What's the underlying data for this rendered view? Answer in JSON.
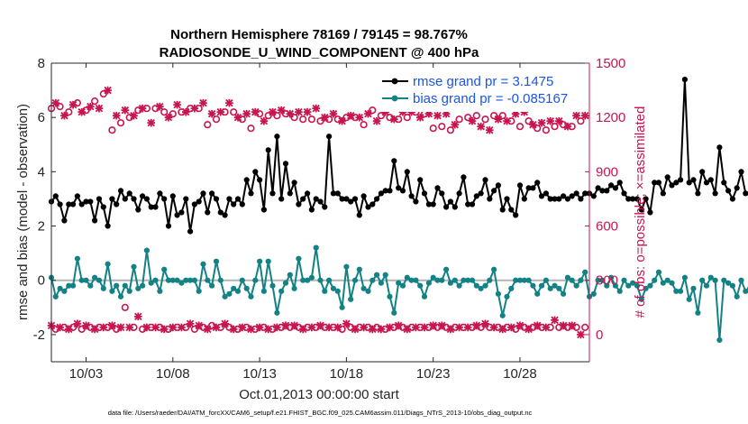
{
  "chart_data": {
    "type": "line",
    "title_line1": "Northern Hemisphere 78169 / 79145 = 98.767%",
    "title_line2": "RADIOSONDE_U_WIND_COMPONENT @ 400 hPa",
    "ylabel": "rmse and bias (model - observation)",
    "y2label": "# of obs: o=possible; ×=assimilated",
    "xlabel": "Oct.01,2013 00:00:00 start",
    "footnote": "data file: /Users/raeder/DAI/ATM_forcXX/CAM6_setup/f.e21.FHIST_BGC.f09_025.CAM6assim.011/Diags_NTrS_2013-10/obs_diag_output.nc",
    "xlim": [
      1,
      32
    ],
    "ylim": [
      -3,
      8
    ],
    "y2lim": [
      -150,
      1500
    ],
    "x_ticks": [
      3,
      8,
      13,
      18,
      23,
      28
    ],
    "x_tick_labels": [
      "10/03",
      "10/08",
      "10/13",
      "10/18",
      "10/23",
      "10/28"
    ],
    "y_ticks": [
      -2,
      0,
      2,
      4,
      6,
      8
    ],
    "y_tick_labels": [
      "-2",
      "0",
      "2",
      "4",
      "6",
      "8"
    ],
    "y2_ticks": [
      0,
      300,
      600,
      900,
      1200,
      1500
    ],
    "y2_tick_labels": [
      "0",
      "300",
      "600",
      "900",
      "1200",
      "1500"
    ],
    "series": [
      {
        "name": "rmse grand pr = 3.1475",
        "color": "#000000",
        "x_start": 1.0,
        "x_step": 0.25,
        "values": [
          2.9,
          3.1,
          2.8,
          2.2,
          2.8,
          2.8,
          3.1,
          2.8,
          2.9,
          2.9,
          2.2,
          3.0,
          2.7,
          2.0,
          3.0,
          2.8,
          3.3,
          3.0,
          3.2,
          3.0,
          2.6,
          3.1,
          3.0,
          2.7,
          2.7,
          3.2,
          3.0,
          2.0,
          3.1,
          2.4,
          2.5,
          3.0,
          1.8,
          2.8,
          2.9,
          3.2,
          2.5,
          3.2,
          3.0,
          2.5,
          2.4,
          3.0,
          2.8,
          3.0,
          2.8,
          3.7,
          3.2,
          4.0,
          3.7,
          2.6,
          4.8,
          3.2,
          5.3,
          3.0,
          4.3,
          3.2,
          3.6,
          2.8,
          3.0,
          3.2,
          2.6,
          3.0,
          2.9,
          2.7,
          5.3,
          3.2,
          3.2,
          3.0,
          3.0,
          2.9,
          3.0,
          2.4,
          3.1,
          2.7,
          2.8,
          3.0,
          3.2,
          3.3,
          3.3,
          4.4,
          3.4,
          3.3,
          4.0,
          3.1,
          2.9,
          3.7,
          3.2,
          2.8,
          2.8,
          3.4,
          3.2,
          2.7,
          2.9,
          2.7,
          3.2,
          3.8,
          2.8,
          2.8,
          3.1,
          3.2,
          3.7,
          3.0,
          3.3,
          3.5,
          2.6,
          3.0,
          2.6,
          2.4,
          3.5,
          3.0,
          3.4,
          3.4,
          3.6,
          3.1,
          3.2,
          3.0,
          3.0,
          3.0,
          3.1,
          3.0,
          3.1,
          3.2,
          3.0,
          3.2,
          3.2,
          3.1,
          3.4,
          3.3,
          3.3,
          3.5,
          3.4,
          3.6,
          3.2,
          3.0,
          3.0,
          3.0,
          2.6,
          3.0,
          2.5,
          3.6,
          3.6,
          3.2,
          3.8,
          3.5,
          3.6,
          3.7,
          7.4,
          3.6,
          3.7,
          3.2,
          4.0,
          3.6,
          3.7,
          3.2,
          4.9,
          3.6,
          3.3,
          3.0,
          3.4,
          4.0,
          3.2,
          3.2,
          3.3,
          3.6,
          2.9,
          3.0
        ]
      },
      {
        "name": "bias grand pr = -0.085167",
        "color": "#138284",
        "x_start": 1.0,
        "x_step": 0.25,
        "values": [
          0.1,
          -0.6,
          -0.3,
          -0.4,
          -0.2,
          -0.2,
          0.8,
          0.0,
          0.0,
          -0.2,
          0.1,
          0.0,
          -0.3,
          0.6,
          -0.4,
          -0.2,
          -0.6,
          -0.2,
          -0.4,
          0.5,
          -0.3,
          -0.2,
          1.1,
          -0.1,
          0.0,
          -0.4,
          0.4,
          0.0,
          0.0,
          0.0,
          -0.1,
          0.0,
          0.0,
          0.0,
          -0.4,
          0.6,
          0.0,
          -0.2,
          0.7,
          0.0,
          -0.6,
          -0.5,
          -0.3,
          -0.4,
          0.0,
          -0.3,
          -0.6,
          0.0,
          0.7,
          -0.4,
          0.7,
          -0.2,
          -1.2,
          -0.4,
          -0.1,
          0.2,
          -0.3,
          0.8,
          0.0,
          0.0,
          0.1,
          1.2,
          0.0,
          -0.4,
          0.0,
          -0.3,
          -0.4,
          -1.0,
          0.5,
          -0.7,
          0.0,
          0.4,
          -0.3,
          -0.4,
          0.0,
          0.2,
          -0.1,
          0.2,
          -0.6,
          -1.2,
          -0.1,
          -0.2,
          0.1,
          0.0,
          0.0,
          -0.2,
          -0.6,
          -0.1,
          0.1,
          0.0,
          0.0,
          0.4,
          -0.1,
          0.0,
          -0.2,
          0.0,
          0.0,
          0.0,
          -0.2,
          -0.3,
          -0.2,
          0.0,
          0.4,
          -0.5,
          -1.3,
          -0.6,
          -0.3,
          0.0,
          0.0,
          0.0,
          0.0,
          -0.2,
          -0.5,
          -0.2,
          0.0,
          -0.3,
          -0.2,
          -0.3,
          -0.5,
          0.1,
          0.0,
          -0.2,
          0.0,
          0.3,
          -0.6,
          -0.5,
          0.0,
          0.0,
          -0.2,
          0.1,
          -0.2,
          -0.4,
          0.0,
          -0.2,
          -0.1,
          -0.2,
          -0.7,
          -0.3,
          -0.2,
          0.0,
          0.3,
          -0.1,
          0.0,
          -0.1,
          -0.4,
          -0.4,
          0.1,
          -0.7,
          -0.3,
          -1.2,
          0.0,
          -0.2,
          0.1,
          0.0,
          -2.2,
          0.0,
          -0.1,
          -0.2,
          -0.6,
          0.0,
          -0.4,
          -0.3,
          -0.3,
          0.0,
          0.1,
          -1.3
        ]
      },
      {
        "name": "o=possible",
        "color": "#c8154f",
        "marker": "circle",
        "axis": "right",
        "x_start": 1.0,
        "x_step": 0.5,
        "values": [
          1250,
          1260,
          1230,
          1280,
          1240,
          1290,
          1330,
          1130,
          1170,
          1200,
          1240,
          1250,
          1250,
          1230,
          1220,
          1230,
          1250,
          1250,
          1160,
          1190,
          1230,
          1230,
          1190,
          1140,
          1220,
          1210,
          1210,
          1220,
          1200,
          1190,
          1190,
          1180,
          1190,
          1190,
          1200,
          1200,
          1160,
          1240,
          1210,
          1200,
          1190,
          1200,
          1230,
          1220,
          1140,
          1150,
          1130,
          1190,
          1200,
          1210,
          1190,
          1210,
          1210,
          1180,
          1150,
          1180,
          1140,
          1130,
          1150,
          1160,
          1150,
          1180
        ]
      },
      {
        "name": "×=assimilated",
        "color": "#c8154f",
        "marker": "x",
        "axis": "right",
        "x_start": 1.25,
        "x_step": 0.5,
        "values": [
          1280,
          1210,
          1270,
          1230,
          1260,
          1250,
          1350,
          1210,
          1240,
          1210,
          1250,
          1170,
          1260,
          1200,
          1270,
          1230,
          1250,
          1280,
          1220,
          1230,
          1280,
          1200,
          1220,
          1230,
          1180,
          1230,
          1240,
          1220,
          1230,
          1230,
          1250,
          1200,
          1220,
          1180,
          1210,
          1200,
          1220,
          1180,
          1230,
          1190,
          1230,
          1230,
          1200,
          1220,
          1210,
          1220,
          1160,
          1260,
          1180,
          1150,
          1130,
          1190,
          1180,
          1220,
          1230,
          1160,
          1170,
          1180,
          1180,
          1150,
          1210,
          1210
        ]
      },
      {
        "name": "assimilated-low-x",
        "color": "#c8154f",
        "marker": "x",
        "axis": "right",
        "x_start": 1.0,
        "x_step": 0.5,
        "values": [
          50,
          40,
          30,
          60,
          50,
          30,
          40,
          50,
          40,
          40,
          100,
          40,
          40,
          30,
          40,
          40,
          60,
          50,
          30,
          40,
          60,
          30,
          40,
          30,
          40,
          30,
          40,
          50,
          50,
          30,
          40,
          50,
          40,
          40,
          60,
          30,
          40,
          30,
          30,
          40,
          50,
          30,
          40,
          40,
          50,
          50,
          30,
          40,
          40,
          50,
          60,
          40,
          30,
          40,
          50,
          30,
          50,
          40,
          80,
          50,
          50,
          0
        ]
      },
      {
        "name": "possible-low-o",
        "color": "#c8154f",
        "marker": "circle",
        "axis": "right",
        "x_start": 1.25,
        "x_step": 0.5,
        "values": [
          30,
          40,
          40,
          30,
          40,
          40,
          40,
          30,
          150,
          40,
          30,
          40,
          40,
          30,
          40,
          40,
          30,
          40,
          50,
          40,
          40,
          30,
          40,
          30,
          40,
          30,
          40,
          40,
          40,
          40,
          40,
          40,
          40,
          30,
          40,
          40,
          40,
          40,
          30,
          40,
          40,
          40,
          40,
          40,
          40,
          40,
          40,
          40,
          40,
          40,
          40,
          40,
          40,
          30,
          40,
          40,
          40,
          40,
          40,
          40,
          40,
          40
        ]
      }
    ]
  }
}
